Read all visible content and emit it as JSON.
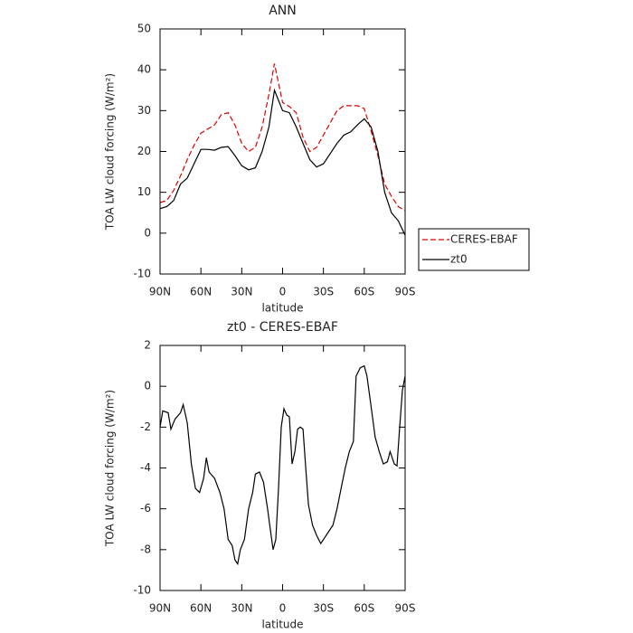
{
  "chart_data": [
    {
      "type": "line",
      "title": "ANN",
      "xlabel": "latitude",
      "ylabel": "TOA LW cloud forcing (W/m²)",
      "x": [
        90,
        85,
        80,
        75,
        70,
        65,
        60,
        55,
        50,
        45,
        40,
        35,
        30,
        25,
        20,
        15,
        10,
        6,
        0,
        -5,
        -10,
        -15,
        -20,
        -25,
        -30,
        -35,
        -40,
        -45,
        -50,
        -55,
        -60,
        -65,
        -70,
        -75,
        -80,
        -85,
        -90
      ],
      "series": [
        {
          "name": "CERES-EBAF",
          "color": "#e00000",
          "linestyle": "dashed",
          "values": [
            7.5,
            8,
            10.5,
            14,
            18,
            21.5,
            24.5,
            25.5,
            26.5,
            29,
            29.5,
            26.5,
            22,
            20,
            21,
            26,
            34,
            41.5,
            32,
            31,
            29.5,
            23.5,
            20,
            21,
            24,
            27,
            30,
            31.2,
            31.2,
            31.2,
            30.5,
            25,
            19,
            12,
            9,
            6.5,
            5.5
          ]
        },
        {
          "name": "zt0",
          "color": "#000000",
          "linestyle": "solid",
          "values": [
            6,
            6.5,
            8,
            12,
            13.5,
            17,
            20.5,
            20.5,
            20.3,
            21,
            21.2,
            19,
            16.5,
            15.5,
            16,
            20,
            26,
            35,
            30,
            29.5,
            26,
            22,
            18,
            16.2,
            17,
            19.5,
            22,
            24,
            24.8,
            26.5,
            28,
            26,
            20,
            10,
            5,
            3,
            -0.5
          ]
        }
      ],
      "xlim": [
        90,
        -90
      ],
      "xticks": [
        {
          "value": 90,
          "label": "90N"
        },
        {
          "value": 60,
          "label": "60N"
        },
        {
          "value": 30,
          "label": "30N"
        },
        0,
        {
          "value": -30,
          "label": "30S"
        },
        {
          "value": -60,
          "label": "60S"
        },
        {
          "value": -90,
          "label": "90S"
        }
      ],
      "ylim": [
        -10,
        50
      ],
      "yticks": [
        -10,
        0,
        10,
        20,
        30,
        40,
        50
      ],
      "legend": "right"
    },
    {
      "type": "line",
      "title": "zt0 - CERES-EBAF",
      "xlabel": "latitude",
      "ylabel": "TOA LW cloud forcing (W/m²)",
      "x": [
        90,
        88,
        84,
        82,
        79,
        75,
        73,
        70,
        67,
        64,
        61,
        58,
        56,
        54,
        50,
        46,
        43,
        40,
        37,
        35,
        33,
        31,
        28,
        25,
        22,
        20,
        17,
        14,
        11,
        9,
        7,
        5,
        3,
        1,
        -1,
        -3,
        -5,
        -7,
        -9,
        -11,
        -13,
        -15,
        -17,
        -19,
        -22,
        -25,
        -28,
        -31,
        -34,
        -37,
        -40,
        -43,
        -46,
        -49,
        -52,
        -54,
        -57,
        -60,
        -62,
        -65,
        -68,
        -71,
        -74,
        -77,
        -79,
        -82,
        -84,
        -86,
        -88,
        -90
      ],
      "series": [
        {
          "color": "#000000",
          "linestyle": "solid",
          "values": [
            -2,
            -1.2,
            -1.3,
            -2.1,
            -1.6,
            -1.3,
            -0.9,
            -1.8,
            -3.8,
            -5,
            -5.2,
            -4.5,
            -3.5,
            -4.2,
            -4.5,
            -5.2,
            -6,
            -7.5,
            -7.8,
            -8.5,
            -8.7,
            -8,
            -7.5,
            -6,
            -5.2,
            -4.3,
            -4.2,
            -4.7,
            -6,
            -7,
            -8,
            -7.5,
            -5,
            -2,
            -1.1,
            -1.4,
            -1.5,
            -3.8,
            -3.2,
            -2.1,
            -2,
            -2.1,
            -4,
            -5.8,
            -6.8,
            -7.3,
            -7.7,
            -7.4,
            -7.1,
            -6.8,
            -6,
            -5,
            -4,
            -3.2,
            -2.7,
            0.5,
            0.9,
            1,
            0.5,
            -1,
            -2.5,
            -3.2,
            -3.8,
            -3.7,
            -3.2,
            -3.8,
            -3.9,
            -2,
            -0.2,
            0.5
          ]
        }
      ],
      "xlim": [
        90,
        -90
      ],
      "xticks": [
        {
          "value": 90,
          "label": "90N"
        },
        {
          "value": 60,
          "label": "60N"
        },
        {
          "value": 30,
          "label": "30N"
        },
        0,
        {
          "value": -30,
          "label": "30S"
        },
        {
          "value": -60,
          "label": "60S"
        },
        {
          "value": -90,
          "label": "90S"
        }
      ],
      "ylim": [
        -10,
        2
      ],
      "yticks": [
        -10,
        -8,
        -6,
        -4,
        -2,
        0,
        2
      ]
    }
  ]
}
